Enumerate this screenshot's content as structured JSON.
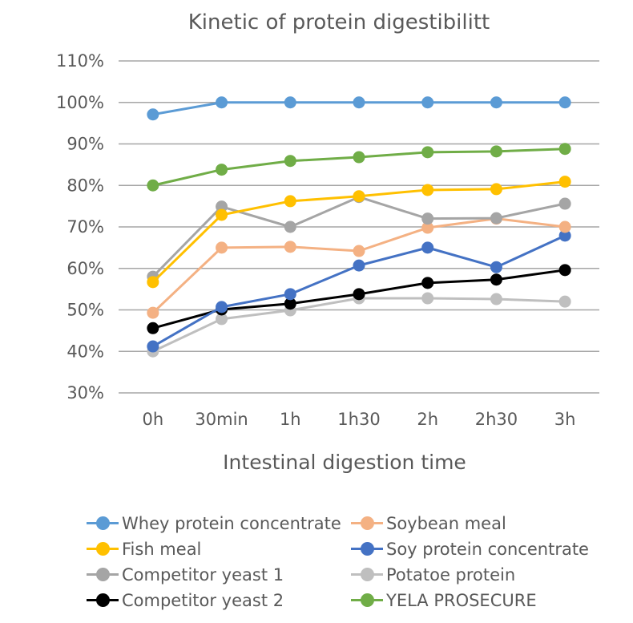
{
  "chart_data": {
    "type": "line",
    "title": "Kinetic of protein digestibilitt",
    "xlabel": "Intestinal digestion time",
    "ylabel": "",
    "categories": [
      "0h",
      "30min",
      "1h",
      "1h30",
      "2h",
      "2h30",
      "3h"
    ],
    "ylim": [
      30,
      110
    ],
    "yticks": [
      30,
      40,
      50,
      60,
      70,
      80,
      90,
      100,
      110
    ],
    "ytick_labels": [
      "30%",
      "40%",
      "50%",
      "60%",
      "70%",
      "80%",
      "90%",
      "100%",
      "110%"
    ],
    "grid": true,
    "legend_position": "bottom",
    "series": [
      {
        "name": "Whey protein concentrate",
        "color": "#5B9BD5",
        "values": [
          97.1,
          100,
          100,
          100,
          100,
          100,
          100
        ]
      },
      {
        "name": "Soybean meal",
        "color": "#F4B183",
        "values": [
          49.3,
          65.0,
          65.2,
          64.2,
          69.8,
          72.0,
          70.0
        ]
      },
      {
        "name": "Fish meal",
        "color": "#FFC000",
        "values": [
          56.7,
          72.9,
          76.2,
          77.4,
          78.9,
          79.1,
          80.9
        ]
      },
      {
        "name": "Soy protein concentrate",
        "color": "#4472C4",
        "values": [
          41.2,
          50.7,
          53.8,
          60.7,
          65.0,
          60.3,
          67.9
        ]
      },
      {
        "name": "Competitor yeast 1",
        "color": "#A5A5A5",
        "values": [
          58.0,
          74.9,
          70.0,
          77.2,
          72.0,
          72.1,
          75.6
        ]
      },
      {
        "name": "Potatoe protein",
        "color": "#BFBFBF",
        "values": [
          40.0,
          47.8,
          49.9,
          52.8,
          52.8,
          52.6,
          52.0
        ]
      },
      {
        "name": "Competitor yeast 2",
        "color": "#000000",
        "values": [
          45.6,
          50.1,
          51.5,
          53.8,
          56.5,
          57.3,
          59.6
        ]
      },
      {
        "name": "YELA PROSECURE",
        "color": "#70AD47",
        "values": [
          80.0,
          83.8,
          85.9,
          86.8,
          88.0,
          88.2,
          88.8
        ]
      }
    ],
    "draw_order": [
      "Potatoe protein",
      "Competitor yeast 2",
      "Soy protein concentrate",
      "Soybean meal",
      "Competitor yeast 1",
      "Fish meal",
      "YELA PROSECURE",
      "Whey protein concentrate"
    ]
  }
}
